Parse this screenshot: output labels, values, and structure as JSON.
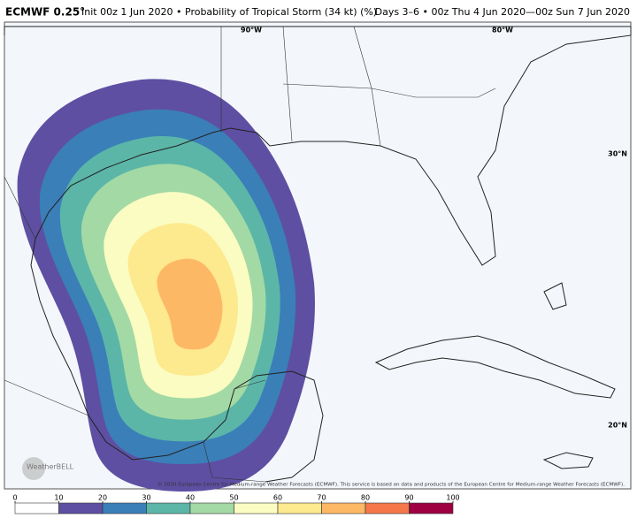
{
  "header": {
    "model": "ECMWF 0.25°",
    "title": "Init 00z 1 Jun 2020 • Probability of Tropical Storm (34 kt) (%)",
    "valid": "Days 3–6 • 00z Thu 4 Jun 2020—00z Sun 7 Jun 2020"
  },
  "map": {
    "lon_labels": [
      "90°W",
      "80°W"
    ],
    "lat_labels": [
      "30°N",
      "20°N"
    ],
    "logo": "WeatherBELL",
    "copyright": "© 2020 European Centre for Medium-range Weather Forecasts (ECMWF). This service is based on data and products of the European Centre for Medium-range Weather Forecasts (ECMWF)."
  },
  "colorbar": {
    "ticks": [
      0,
      10,
      20,
      30,
      40,
      50,
      60,
      70,
      80,
      90,
      100
    ],
    "colors": [
      "#ffffff",
      "#5e4fa2",
      "#3a7fb8",
      "#5bb6a8",
      "#a3d9a4",
      "#fafcc2",
      "#fde98e",
      "#fdb866",
      "#f4784a",
      "#9e0142"
    ]
  }
}
